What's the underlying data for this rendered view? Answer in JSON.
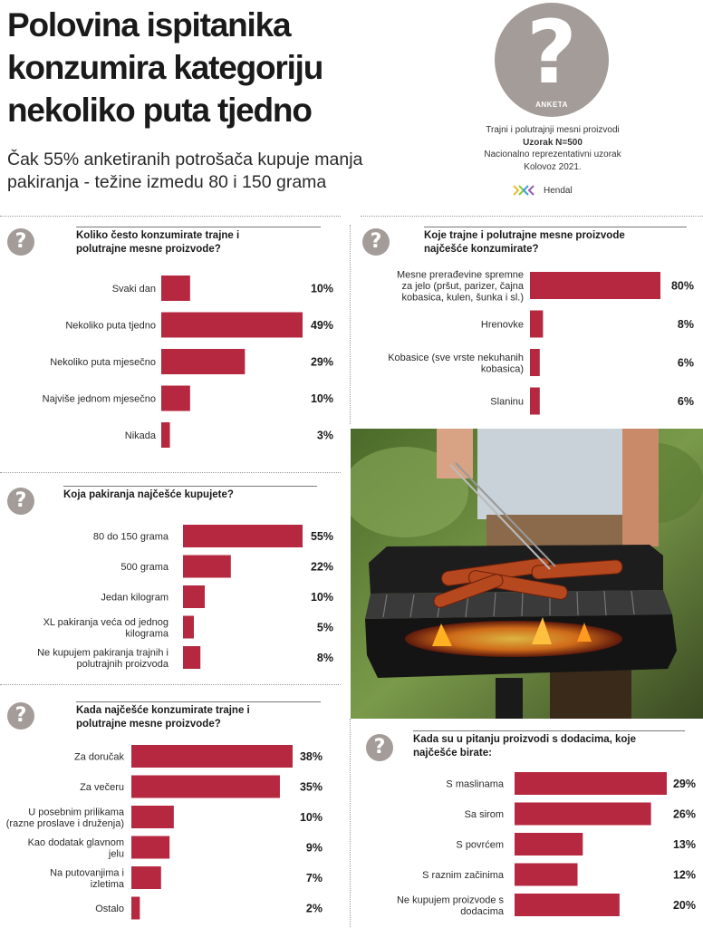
{
  "header": {
    "title_lines": [
      "Polovina ispitanika",
      "konzumira kategoriju",
      "nekoliko puta tjedno"
    ],
    "subtitle_lines": [
      "Čak 55% anketiranih potrošača kupuje manja",
      "pakiranja - težine izmedu 80 i 150 grama"
    ]
  },
  "badge": {
    "glyph": "?",
    "label": "ANKETA"
  },
  "survey_meta": {
    "line1": "Trajni i polutrajnji mesni proizvodi",
    "line2": "Uzorak N=500",
    "line3": "Nacionalno reprezentativni uzorak",
    "line4": "Kolovoz 2021."
  },
  "brand": {
    "name": "Hendal"
  },
  "colors": {
    "bar": "#b5283f",
    "icon": "#a39c98"
  },
  "chart_data": [
    {
      "type": "bar",
      "title_lines": [
        "Koliko često konzumirate trajne i",
        "polutrajne mesne proizvode?"
      ],
      "categories": [
        [
          "Svaki dan"
        ],
        [
          "Nekoliko puta tjedno"
        ],
        [
          "Nekoliko puta mjesečno"
        ],
        [
          "Najviše jednom mjesečno"
        ],
        [
          "Nikada"
        ]
      ],
      "values": [
        10,
        49,
        29,
        10,
        3
      ],
      "value_labels": [
        "10%",
        "49%",
        "29%",
        "10%",
        "3%"
      ]
    },
    {
      "type": "bar",
      "title_lines": [
        "Koja pakiranja najčešće kupujete?"
      ],
      "categories": [
        [
          "80 do 150 grama"
        ],
        [
          "500 grama"
        ],
        [
          "Jedan kilogram"
        ],
        [
          "XL pakiranja veća od jednog",
          "kilograma"
        ],
        [
          "Ne kupujem pakiranja trajnih i",
          "polutrajnih proizvoda"
        ]
      ],
      "values": [
        55,
        22,
        10,
        5,
        8
      ],
      "value_labels": [
        "55%",
        "22%",
        "10%",
        "5%",
        "8%"
      ]
    },
    {
      "type": "bar",
      "title_lines": [
        "Kada najčešće konzumirate trajne i",
        "polutrajne mesne proizvode?"
      ],
      "categories": [
        [
          "Za doručak"
        ],
        [
          "Za večeru"
        ],
        [
          "U posebnim prilikama",
          "(razne proslave i druženja)"
        ],
        [
          "Kao dodatak glavnom",
          "jelu"
        ],
        [
          "Na putovanjima i",
          "izletima"
        ],
        [
          "Ostalo"
        ]
      ],
      "values": [
        38,
        35,
        10,
        9,
        7,
        2
      ],
      "value_labels": [
        "38%",
        "35%",
        "10%",
        "9%",
        "7%",
        "2%"
      ]
    },
    {
      "type": "bar",
      "title_lines": [
        "Koje trajne i polutrajne mesne proizvode",
        "najčešće konzumirate?"
      ],
      "categories": [
        [
          "Mesne prerađevine spremne",
          "za jelo (pršut, parizer, čajna",
          "kobasica, kulen, šunka i sl.)"
        ],
        [
          "Hrenovke"
        ],
        [
          "Kobasice (sve vrste nekuhanih",
          "kobasica)"
        ],
        [
          "Slaninu"
        ]
      ],
      "values": [
        80,
        8,
        6,
        6
      ],
      "value_labels": [
        "80%",
        "8%",
        "6%",
        "6%"
      ]
    },
    {
      "type": "bar",
      "title_lines": [
        "Kada su u pitanju proizvodi s dodacima, koje",
        "najčešće birate:"
      ],
      "categories": [
        [
          "S maslinama"
        ],
        [
          "Sa sirom"
        ],
        [
          "S povrćem"
        ],
        [
          "S raznim začinima"
        ],
        [
          "Ne kupujem proizvode s",
          "dodacima"
        ]
      ],
      "values": [
        29,
        26,
        13,
        12,
        20
      ],
      "value_labels": [
        "29%",
        "26%",
        "13%",
        "12%",
        "20%"
      ]
    }
  ]
}
